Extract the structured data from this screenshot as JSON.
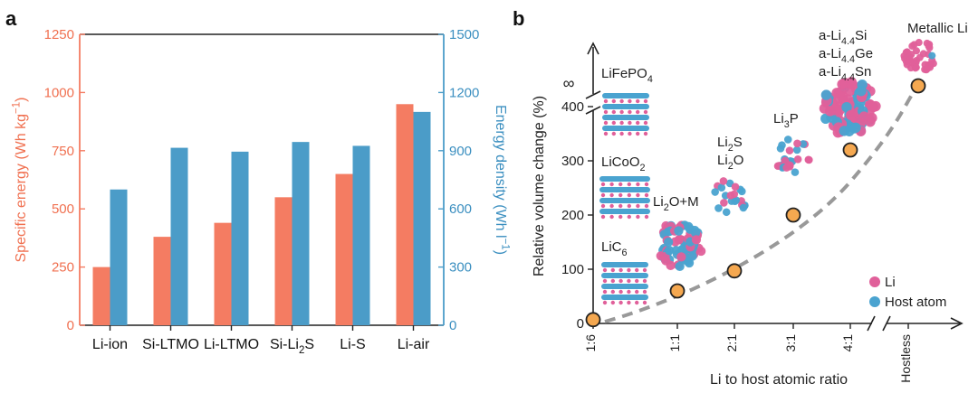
{
  "panel_a": {
    "label": "a",
    "colors": {
      "specific_energy": "#f47c62",
      "energy_density": "#4b9cc8",
      "left_axis_text": "#f07050",
      "right_axis_text": "#3b8fc0"
    },
    "chart_data": {
      "type": "bar",
      "categories": [
        "Li-ion",
        "Si-LTMO",
        "Li-LTMO",
        "Si-Li2S",
        "Li-S",
        "Li-air"
      ],
      "category_subscripts": [
        "",
        "",
        "",
        "2",
        "",
        ""
      ],
      "series": [
        {
          "name": "",
          "axis": "left",
          "values": [
            250,
            380,
            440,
            550,
            650,
            950
          ]
        },
        {
          "name": "",
          "axis": "right",
          "values": [
            700,
            915,
            895,
            945,
            925,
            1100
          ]
        }
      ],
      "ylabel_left": "Specific energy (Wh kg",
      "ylabel_left_sup": "−1",
      "ylabel_left_tail": ")",
      "ylabel_right": "Energy density (Wh l",
      "ylabel_right_sup": "−1",
      "ylabel_right_tail": ")",
      "ylim_left": [
        0,
        1250
      ],
      "ylim_right": [
        0,
        1500
      ],
      "yticks_left": [
        "0",
        "250",
        "500",
        "750",
        "1000",
        "1250"
      ],
      "yticks_right": [
        "0",
        "300",
        "600",
        "900",
        "1200",
        "1500"
      ],
      "grid": false
    }
  },
  "panel_b": {
    "label": "b",
    "colors": {
      "li": "#e0609a",
      "host": "#4aa3d0",
      "point_fill": "#f5a850",
      "curve": "#999999"
    },
    "chart_data": {
      "type": "scatter",
      "x": [
        "1:6",
        "1:1",
        "2:1",
        "3:1",
        "4:1",
        "Hostless"
      ],
      "y": [
        7,
        60,
        97,
        200,
        320,
        "∞"
      ],
      "xlabel": "Li to host atomic ratio",
      "ylabel": "Relative volume change (%)",
      "yticks": [
        "0",
        "100",
        "200",
        "300",
        "400"
      ],
      "ylim": [
        0,
        450
      ],
      "y_break_label": "∞",
      "annotations": [
        {
          "parts": [
            [
              "LiFePO",
              "n"
            ],
            [
              "4",
              "sub"
            ]
          ]
        },
        {
          "parts": [
            [
              "LiCoO",
              "n"
            ],
            [
              "2",
              "sub"
            ]
          ]
        },
        {
          "parts": [
            [
              "LiC",
              "n"
            ],
            [
              "6",
              "sub"
            ]
          ]
        },
        {
          "parts": [
            [
              "Li",
              "n"
            ],
            [
              "2",
              "sub"
            ],
            [
              "O+M",
              "n"
            ]
          ]
        },
        {
          "parts": [
            [
              "Li",
              "n"
            ],
            [
              "2",
              "sub"
            ],
            [
              "S",
              "n"
            ]
          ]
        },
        {
          "parts": [
            [
              "Li",
              "n"
            ],
            [
              "2",
              "sub"
            ],
            [
              "O",
              "n"
            ]
          ]
        },
        {
          "parts": [
            [
              "Li",
              "n"
            ],
            [
              "3",
              "sub"
            ],
            [
              "P",
              "n"
            ]
          ]
        },
        {
          "parts": [
            [
              "a-Li",
              "n"
            ],
            [
              "4.4",
              "sub"
            ],
            [
              "Si",
              "n"
            ]
          ]
        },
        {
          "parts": [
            [
              "a-Li",
              "n"
            ],
            [
              "4.4",
              "sub"
            ],
            [
              "Ge",
              "n"
            ]
          ]
        },
        {
          "parts": [
            [
              "a-Li",
              "n"
            ],
            [
              "4.4",
              "sub"
            ],
            [
              "Sn",
              "n"
            ]
          ]
        },
        {
          "parts": [
            [
              "Metallic Li",
              "n"
            ]
          ]
        }
      ],
      "legend": [
        {
          "name": "Li",
          "color": "#e0609a"
        },
        {
          "name": "Host atom",
          "color": "#4aa3d0"
        }
      ],
      "legend_position": "bottom-right"
    }
  }
}
